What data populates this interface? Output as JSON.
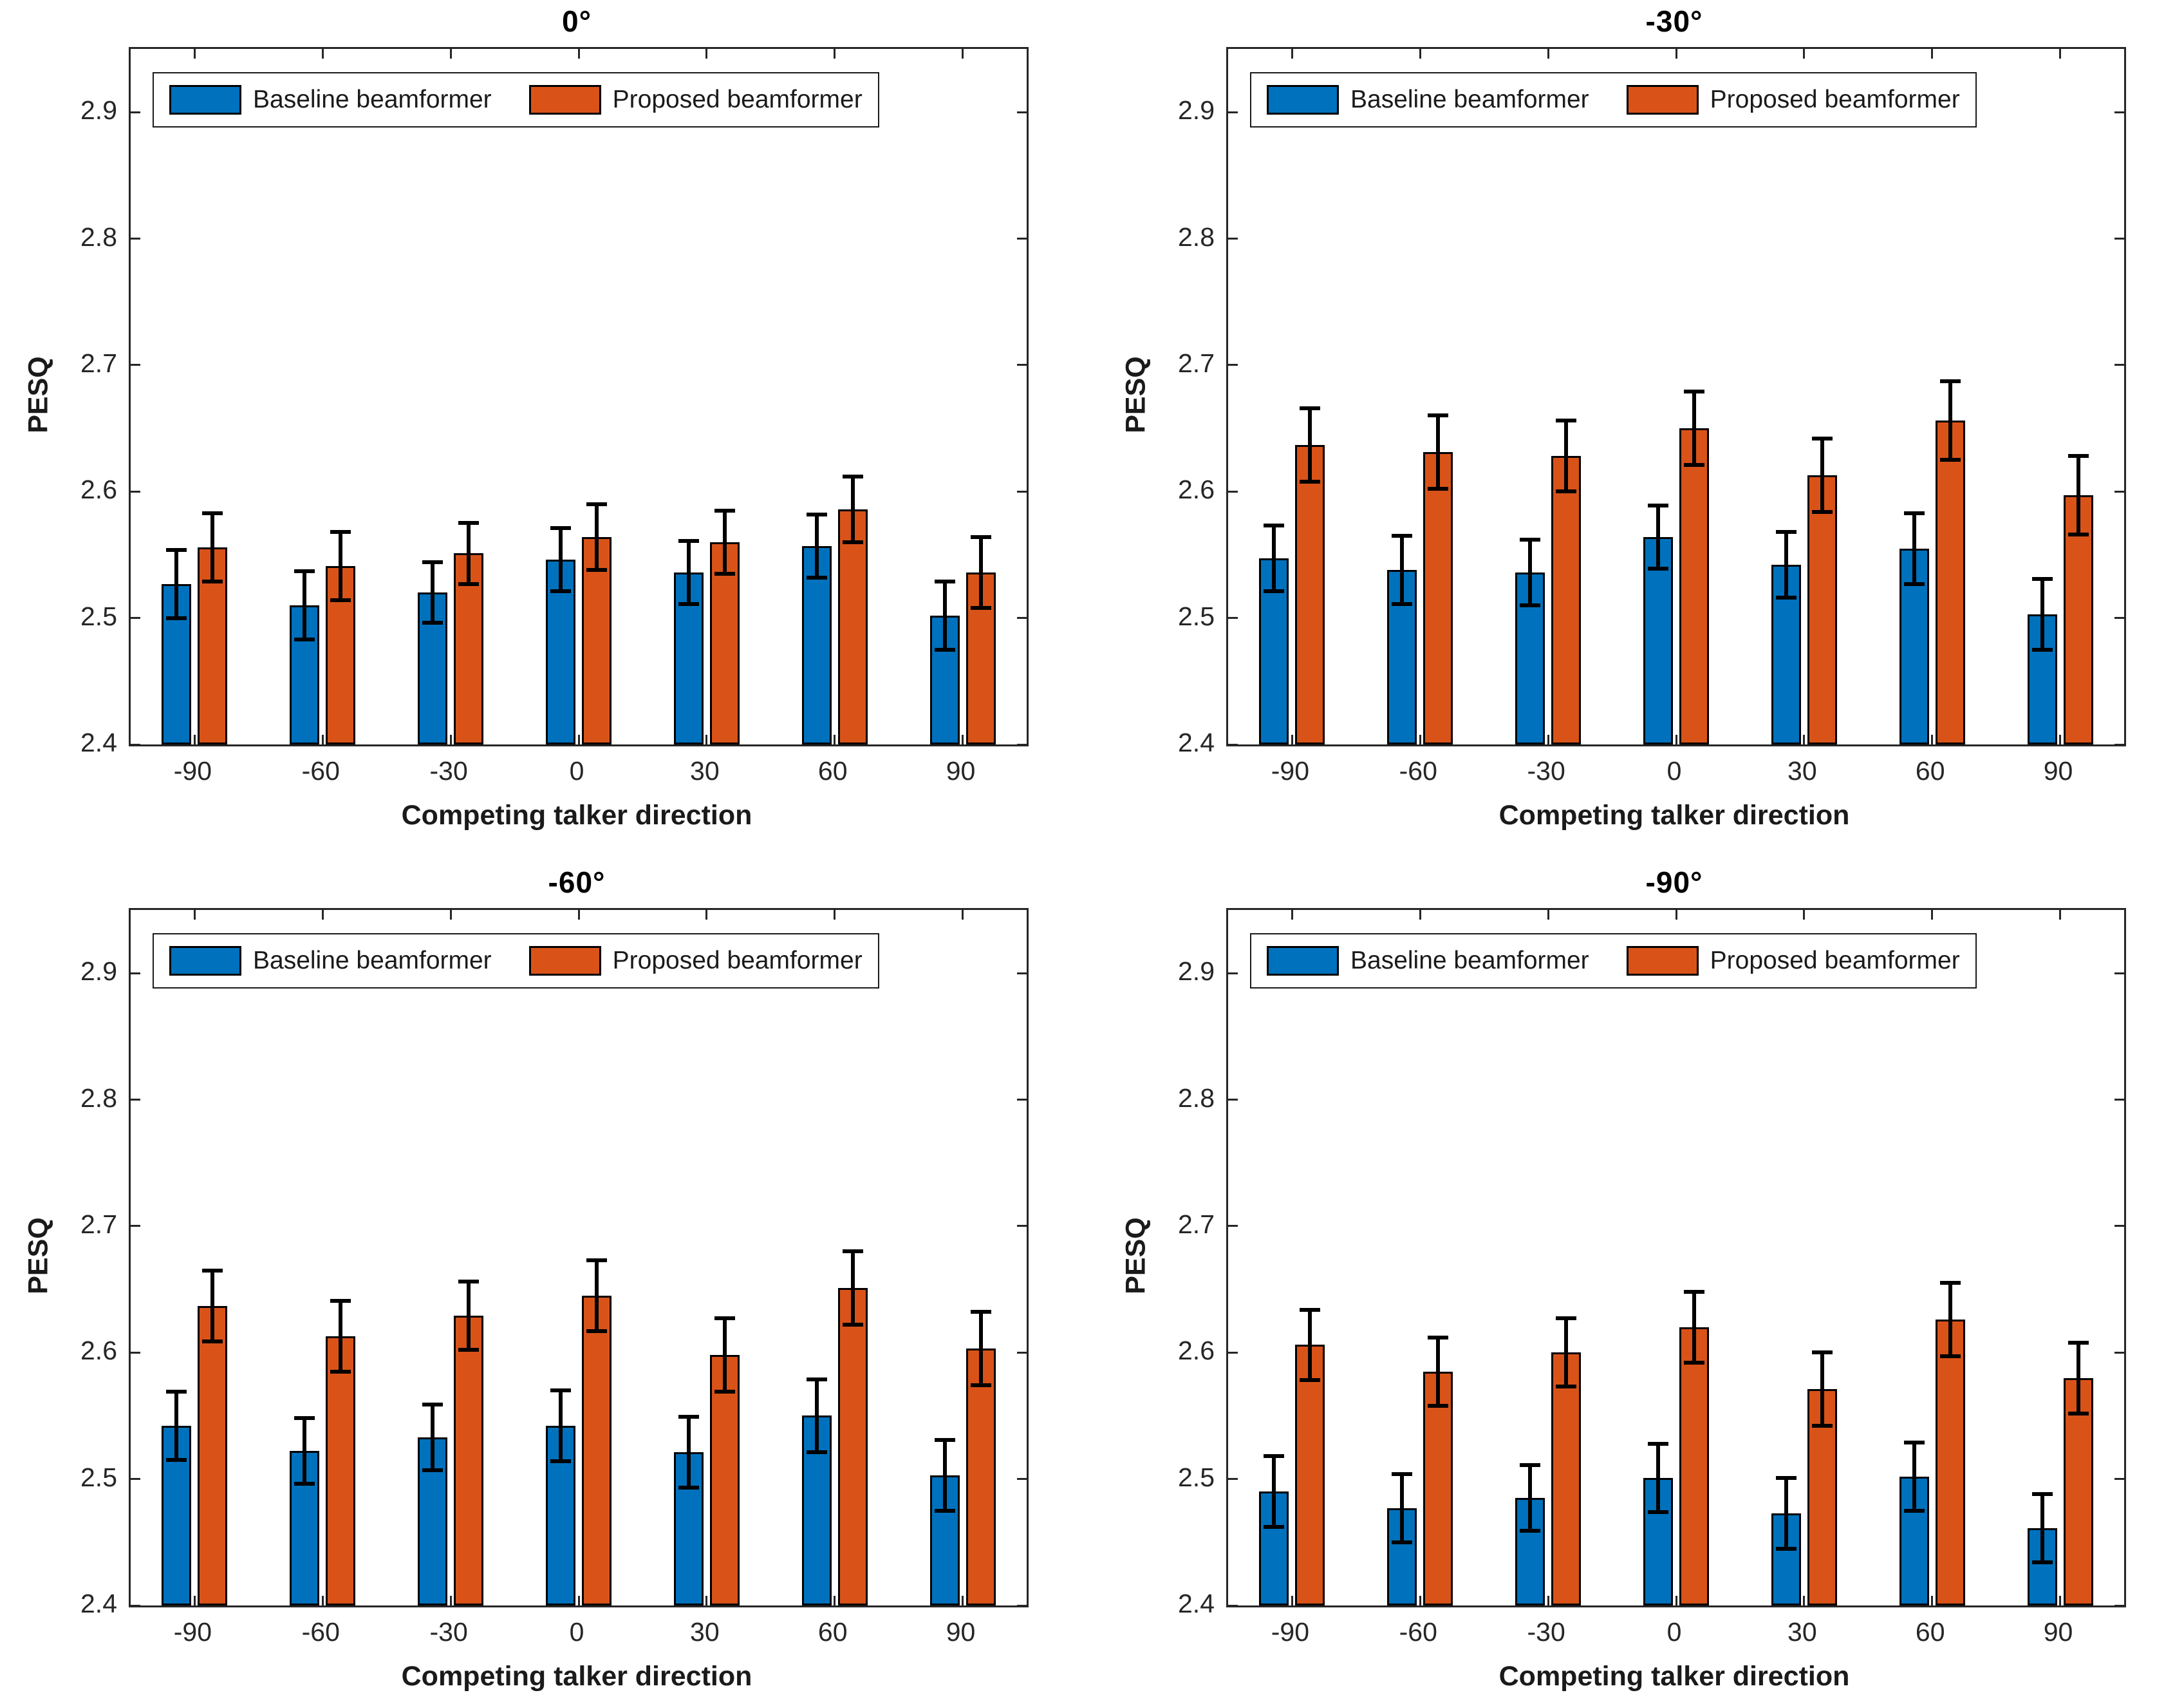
{
  "figure": {
    "background": "#ffffff",
    "axis_color": "#262626",
    "bar_edge_color": "#000000",
    "error_bar_color": "#000000"
  },
  "legend": {
    "items": [
      {
        "label": "Baseline beamformer",
        "color": "#0072BD"
      },
      {
        "label": "Proposed beamformer",
        "color": "#D95319"
      }
    ],
    "position": "top-left-inside"
  },
  "chart_data": [
    {
      "type": "bar",
      "title": "0°",
      "xlabel": "Competing talker direction",
      "ylabel": "PESQ",
      "categories": [
        "-90",
        "-60",
        "-30",
        "0",
        "30",
        "60",
        "90"
      ],
      "yticks": [
        2.4,
        2.5,
        2.6,
        2.7,
        2.8,
        2.9
      ],
      "ylim": [
        2.4,
        2.95
      ],
      "grid": false,
      "series": [
        {
          "name": "Baseline beamformer",
          "color": "#0072BD",
          "values": [
            2.527,
            2.51,
            2.52,
            2.546,
            2.536,
            2.557,
            2.502
          ],
          "errors": [
            0.027,
            0.027,
            0.024,
            0.025,
            0.025,
            0.025,
            0.027
          ]
        },
        {
          "name": "Proposed beamformer",
          "color": "#D95319",
          "values": [
            2.556,
            2.541,
            2.551,
            2.564,
            2.56,
            2.586,
            2.536
          ],
          "errors": [
            0.027,
            0.027,
            0.024,
            0.026,
            0.025,
            0.026,
            0.028
          ]
        }
      ]
    },
    {
      "type": "bar",
      "title": "-30°",
      "xlabel": "Competing talker direction",
      "ylabel": "PESQ",
      "categories": [
        "-90",
        "-60",
        "-30",
        "0",
        "30",
        "60",
        "90"
      ],
      "yticks": [
        2.4,
        2.5,
        2.6,
        2.7,
        2.8,
        2.9
      ],
      "ylim": [
        2.4,
        2.95
      ],
      "grid": false,
      "series": [
        {
          "name": "Baseline beamformer",
          "color": "#0072BD",
          "values": [
            2.547,
            2.538,
            2.536,
            2.564,
            2.542,
            2.555,
            2.503
          ],
          "errors": [
            0.026,
            0.027,
            0.026,
            0.025,
            0.026,
            0.028,
            0.028
          ]
        },
        {
          "name": "Proposed beamformer",
          "color": "#D95319",
          "values": [
            2.637,
            2.631,
            2.628,
            2.65,
            2.613,
            2.656,
            2.597
          ],
          "errors": [
            0.029,
            0.029,
            0.028,
            0.029,
            0.029,
            0.031,
            0.031
          ]
        }
      ]
    },
    {
      "type": "bar",
      "title": "-60°",
      "xlabel": "Competing talker direction",
      "ylabel": "PESQ",
      "categories": [
        "-90",
        "-60",
        "-30",
        "0",
        "30",
        "60",
        "90"
      ],
      "yticks": [
        2.4,
        2.5,
        2.6,
        2.7,
        2.8,
        2.9
      ],
      "ylim": [
        2.4,
        2.95
      ],
      "grid": false,
      "series": [
        {
          "name": "Baseline beamformer",
          "color": "#0072BD",
          "values": [
            2.542,
            2.522,
            2.533,
            2.542,
            2.521,
            2.55,
            2.503
          ],
          "errors": [
            0.027,
            0.026,
            0.026,
            0.028,
            0.028,
            0.029,
            0.028
          ]
        },
        {
          "name": "Proposed beamformer",
          "color": "#D95319",
          "values": [
            2.637,
            2.613,
            2.629,
            2.645,
            2.598,
            2.651,
            2.603
          ],
          "errors": [
            0.028,
            0.028,
            0.027,
            0.028,
            0.029,
            0.029,
            0.029
          ]
        }
      ]
    },
    {
      "type": "bar",
      "title": "-90°",
      "xlabel": "Competing talker direction",
      "ylabel": "PESQ",
      "categories": [
        "-90",
        "-60",
        "-30",
        "0",
        "30",
        "60",
        "90"
      ],
      "yticks": [
        2.4,
        2.5,
        2.6,
        2.7,
        2.8,
        2.9
      ],
      "ylim": [
        2.4,
        2.95
      ],
      "grid": false,
      "series": [
        {
          "name": "Baseline beamformer",
          "color": "#0072BD",
          "values": [
            2.49,
            2.477,
            2.485,
            2.501,
            2.473,
            2.502,
            2.461
          ],
          "errors": [
            0.028,
            0.027,
            0.026,
            0.027,
            0.028,
            0.027,
            0.027
          ]
        },
        {
          "name": "Proposed beamformer",
          "color": "#D95319",
          "values": [
            2.606,
            2.585,
            2.6,
            2.62,
            2.571,
            2.626,
            2.58
          ],
          "errors": [
            0.028,
            0.027,
            0.027,
            0.028,
            0.029,
            0.029,
            0.028
          ]
        }
      ]
    }
  ]
}
